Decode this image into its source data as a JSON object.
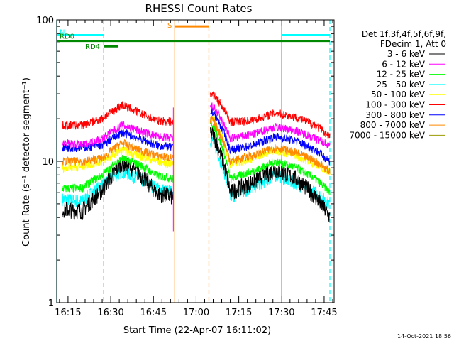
{
  "chart_data": {
    "type": "line",
    "title": "RHESSI Count Rates",
    "xlabel": "Start Time (22-Apr-07 16:11:02)",
    "ylabel": "Count Rate (s⁻¹ detector segment⁻¹)",
    "yscale": "log",
    "ylim": [
      1,
      100
    ],
    "xlim": [
      "16:11:02",
      "17:48:30"
    ],
    "x_ticks": [
      "16:15",
      "16:30",
      "16:45",
      "17:00",
      "17:15",
      "17:30",
      "17:45"
    ],
    "y_ticks": [
      "1",
      "10",
      "100"
    ],
    "grid": false,
    "legend_position": "right",
    "legend_header": [
      "Det 1f,3f,4f,5f,6f,9f,",
      "FDecim 1, Att 0"
    ],
    "timestamp": "14-Oct-2021 18:56",
    "data_gap": [
      "16:52:30",
      "17:04:30"
    ],
    "series": [
      {
        "name": "3 - 6 keV",
        "color": "#000000",
        "values": [
          [
            "16:13",
            4.6
          ],
          [
            "16:20",
            4.5
          ],
          [
            "16:27",
            6.2
          ],
          [
            "16:34",
            9.8
          ],
          [
            "16:40",
            8.2
          ],
          [
            "16:46",
            6.0
          ],
          [
            "16:52",
            5.6
          ],
          [
            "17:05",
            17.0
          ],
          [
            "17:12",
            6.0
          ],
          [
            "17:20",
            7.2
          ],
          [
            "17:28",
            8.8
          ],
          [
            "17:35",
            7.6
          ],
          [
            "17:42",
            5.6
          ],
          [
            "17:47",
            4.0
          ]
        ]
      },
      {
        "name": "6 - 12 keV",
        "color": "#ff00ff",
        "values": [
          [
            "16:13",
            13.5
          ],
          [
            "16:20",
            13.0
          ],
          [
            "16:27",
            14.5
          ],
          [
            "16:34",
            18.0
          ],
          [
            "16:40",
            16.5
          ],
          [
            "16:46",
            15.0
          ],
          [
            "16:52",
            14.5
          ],
          [
            "17:05",
            26.0
          ],
          [
            "17:12",
            14.5
          ],
          [
            "17:20",
            15.5
          ],
          [
            "17:28",
            17.5
          ],
          [
            "17:35",
            16.5
          ],
          [
            "17:42",
            14.5
          ],
          [
            "17:47",
            13.0
          ]
        ]
      },
      {
        "name": "12 - 25 keV",
        "color": "#00ff00",
        "values": [
          [
            "16:13",
            6.4
          ],
          [
            "16:20",
            6.5
          ],
          [
            "16:27",
            8.0
          ],
          [
            "16:34",
            10.5
          ],
          [
            "16:40",
            9.5
          ],
          [
            "16:46",
            8.0
          ],
          [
            "16:52",
            7.5
          ],
          [
            "17:05",
            20.0
          ],
          [
            "17:12",
            7.5
          ],
          [
            "17:20",
            8.5
          ],
          [
            "17:28",
            10.0
          ],
          [
            "17:35",
            9.0
          ],
          [
            "17:42",
            7.5
          ],
          [
            "17:47",
            6.0
          ]
        ]
      },
      {
        "name": "25 - 50 keV",
        "color": "#00ffff",
        "values": [
          [
            "16:13",
            5.4
          ],
          [
            "16:20",
            5.2
          ],
          [
            "16:27",
            6.8
          ],
          [
            "16:34",
            8.5
          ],
          [
            "16:40",
            7.5
          ],
          [
            "16:46",
            6.5
          ],
          [
            "16:52",
            6.0
          ],
          [
            "17:05",
            15.0
          ],
          [
            "17:12",
            5.6
          ],
          [
            "17:20",
            6.5
          ],
          [
            "17:28",
            8.0
          ],
          [
            "17:35",
            7.0
          ],
          [
            "17:42",
            6.0
          ],
          [
            "17:47",
            5.0
          ]
        ]
      },
      {
        "name": "50 - 100 keV",
        "color": "#ffff00",
        "values": [
          [
            "16:13",
            9.0
          ],
          [
            "16:20",
            9.2
          ],
          [
            "16:27",
            10.0
          ],
          [
            "16:34",
            12.0
          ],
          [
            "16:40",
            11.0
          ],
          [
            "16:46",
            10.0
          ],
          [
            "16:52",
            9.5
          ],
          [
            "17:05",
            22.0
          ],
          [
            "17:12",
            9.5
          ],
          [
            "17:20",
            10.5
          ],
          [
            "17:28",
            12.0
          ],
          [
            "17:35",
            11.0
          ],
          [
            "17:42",
            9.5
          ],
          [
            "17:47",
            8.5
          ]
        ]
      },
      {
        "name": "100 - 300 keV",
        "color": "#ff0000",
        "values": [
          [
            "16:13",
            18.0
          ],
          [
            "16:20",
            18.0
          ],
          [
            "16:27",
            20.0
          ],
          [
            "16:34",
            25.0
          ],
          [
            "16:40",
            22.0
          ],
          [
            "16:46",
            19.5
          ],
          [
            "16:52",
            19.0
          ],
          [
            "17:05",
            32.0
          ],
          [
            "17:12",
            19.0
          ],
          [
            "17:20",
            19.5
          ],
          [
            "17:28",
            22.0
          ],
          [
            "17:35",
            20.5
          ],
          [
            "17:42",
            18.0
          ],
          [
            "17:47",
            15.0
          ]
        ]
      },
      {
        "name": "300 - 800 keV",
        "color": "#0000ff",
        "values": [
          [
            "16:13",
            12.5
          ],
          [
            "16:20",
            12.5
          ],
          [
            "16:27",
            13.0
          ],
          [
            "16:34",
            16.0
          ],
          [
            "16:40",
            14.5
          ],
          [
            "16:46",
            13.0
          ],
          [
            "16:52",
            12.5
          ],
          [
            "17:05",
            24.0
          ],
          [
            "17:12",
            12.0
          ],
          [
            "17:20",
            13.0
          ],
          [
            "17:28",
            15.0
          ],
          [
            "17:35",
            14.0
          ],
          [
            "17:42",
            12.0
          ],
          [
            "17:47",
            10.0
          ]
        ]
      },
      {
        "name": "800 - 7000 keV",
        "color": "#ff8800",
        "values": [
          [
            "16:13",
            10.0
          ],
          [
            "16:20",
            10.0
          ],
          [
            "16:27",
            10.5
          ],
          [
            "16:34",
            13.5
          ],
          [
            "16:40",
            12.0
          ],
          [
            "16:46",
            11.0
          ],
          [
            "16:52",
            10.5
          ],
          [
            "17:05",
            21.0
          ],
          [
            "17:12",
            10.0
          ],
          [
            "17:20",
            11.0
          ],
          [
            "17:28",
            12.5
          ],
          [
            "17:35",
            11.5
          ],
          [
            "17:42",
            10.0
          ],
          [
            "17:47",
            8.5
          ]
        ]
      },
      {
        "name": "7000 - 15000 keV",
        "color": "#999900",
        "values": []
      }
    ],
    "annotations": [
      {
        "label": "N",
        "color": "#00ffff",
        "start": "16:11:02",
        "end": "16:27:30",
        "level": 78
      },
      {
        "label": "",
        "color": "#00ffff",
        "start": "17:30:00",
        "end": "17:47:00",
        "level": 78
      },
      {
        "label": "RD0",
        "color": "#008800",
        "start": "16:11:02",
        "end": "17:47:00",
        "level": 71
      },
      {
        "label": "RD4",
        "color": "#008800",
        "start": "16:27:30",
        "end": "16:32:30",
        "level": 65
      },
      {
        "label": "S",
        "color": "#ff8800",
        "start": "16:52:30",
        "end": "17:04:30",
        "level": 90
      }
    ],
    "vertical_lines": [
      {
        "time": "16:11:02",
        "color": "#00ffff",
        "style": "solid"
      },
      {
        "time": "16:27:30",
        "color": "#00ffff",
        "style": "dashed"
      },
      {
        "time": "16:52:30",
        "color": "#ff8800",
        "style": "solid"
      },
      {
        "time": "17:04:30",
        "color": "#ff8800",
        "style": "dashed"
      },
      {
        "time": "17:30:00",
        "color": "#00ffff",
        "style": "solid"
      },
      {
        "time": "17:47:00",
        "color": "#00ffff",
        "style": "dashed"
      }
    ]
  }
}
